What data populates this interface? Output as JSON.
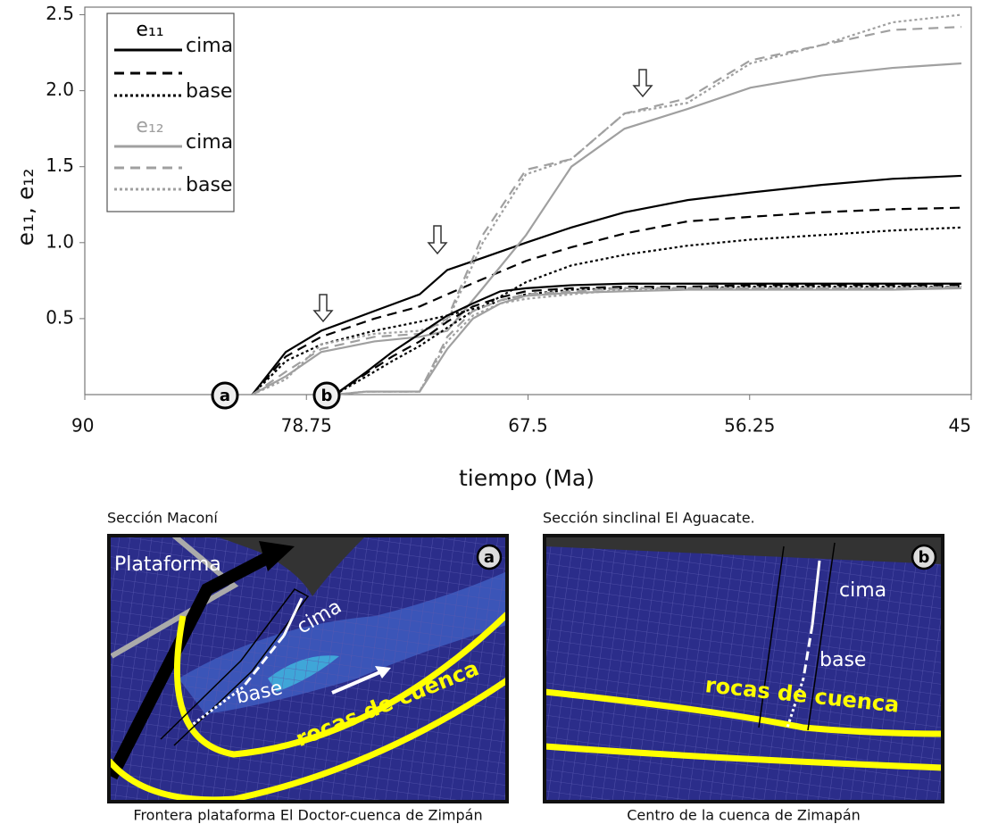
{
  "chart_data": {
    "type": "line",
    "x_label": "tiempo (Ma)",
    "y_label": "e₁₁, e₁₂",
    "xlim": [
      90,
      45
    ],
    "xticks": [
      90,
      78.75,
      67.5,
      56.25,
      45
    ],
    "ylim": [
      0,
      2.55
    ],
    "yticks": [
      0.5,
      {
        "value": 1.0,
        "label": "1.0"
      },
      1.5,
      {
        "value": 2.0,
        "label": "2.0"
      },
      2.5
    ],
    "annotations": [
      "a",
      "b"
    ],
    "legend": [
      {
        "title": "e₁₁",
        "entries": [
          {
            "label": "cima",
            "color": "#000000",
            "dash": "solid"
          },
          {
            "color": "#000000",
            "dash": "dashed"
          },
          {
            "label": "base",
            "color": "#000000",
            "dash": "dotted"
          }
        ]
      },
      {
        "title": "e₁₂",
        "entries": [
          {
            "label": "cima",
            "color": "#a0a0a0",
            "dash": "solid"
          },
          {
            "color": "#a0a0a0",
            "dash": "dashed"
          },
          {
            "label": "base",
            "color": "#a0a0a0",
            "dash": "dotted"
          }
        ]
      }
    ],
    "series": [
      {
        "color": "#000000",
        "dash": "solid",
        "x": [
          81.5,
          79.8,
          78.0,
          75.3,
          73.0,
          71.6,
          69.8,
          67.6,
          65.3,
          62.6,
          59.4,
          56.2,
          52.6,
          49.0,
          45.5
        ],
        "values": [
          0,
          0.28,
          0.42,
          0.55,
          0.66,
          0.82,
          0.9,
          1.0,
          1.1,
          1.2,
          1.28,
          1.33,
          1.38,
          1.42,
          1.44
        ]
      },
      {
        "color": "#000000",
        "dash": "dashed",
        "x": [
          81.5,
          79.8,
          78.0,
          75.3,
          73.0,
          71.6,
          69.8,
          67.6,
          65.3,
          62.6,
          59.4,
          56.2,
          52.6,
          49.0,
          45.5
        ],
        "values": [
          0,
          0.25,
          0.38,
          0.5,
          0.58,
          0.66,
          0.76,
          0.88,
          0.97,
          1.06,
          1.14,
          1.17,
          1.2,
          1.22,
          1.23
        ]
      },
      {
        "color": "#000000",
        "dash": "dotted",
        "x": [
          81.5,
          79.8,
          78.0,
          75.3,
          73.0,
          71.6,
          69.8,
          67.6,
          65.3,
          62.6,
          59.4,
          56.2,
          52.6,
          49.0,
          45.5
        ],
        "values": [
          0,
          0.22,
          0.33,
          0.42,
          0.48,
          0.52,
          0.58,
          0.74,
          0.85,
          0.92,
          0.98,
          1.02,
          1.05,
          1.08,
          1.1
        ]
      },
      {
        "color": "#a0a0a0",
        "dash": "solid",
        "x": [
          81.5,
          79.8,
          78.0,
          75.3,
          73.0,
          71.6,
          69.8,
          67.6,
          65.3,
          62.6,
          59.4,
          56.2,
          52.6,
          49.0,
          45.5
        ],
        "values": [
          0,
          0.12,
          0.28,
          0.35,
          0.38,
          0.42,
          0.7,
          1.05,
          1.5,
          1.75,
          1.88,
          2.02,
          2.1,
          2.15,
          2.18
        ]
      },
      {
        "color": "#a0a0a0",
        "dash": "dashed",
        "x": [
          81.5,
          79.8,
          78.0,
          75.3,
          73.0,
          71.6,
          69.8,
          67.6,
          65.3,
          62.6,
          59.4,
          56.2,
          52.6,
          49.0,
          45.5
        ],
        "values": [
          0,
          0.15,
          0.3,
          0.38,
          0.4,
          0.5,
          1.05,
          1.48,
          1.55,
          1.85,
          1.95,
          2.2,
          2.3,
          2.4,
          2.42
        ]
      },
      {
        "color": "#a0a0a0",
        "dash": "dotted",
        "x": [
          81.5,
          79.8,
          78.0,
          75.3,
          73.0,
          71.6,
          69.8,
          67.6,
          65.3,
          62.6,
          59.4,
          56.2,
          52.6,
          49.0,
          45.5
        ],
        "values": [
          0,
          0.1,
          0.33,
          0.4,
          0.42,
          0.48,
          1.0,
          1.45,
          1.55,
          1.85,
          1.92,
          2.18,
          2.3,
          2.45,
          2.5
        ]
      },
      {
        "color": "#000000",
        "dash": "solid",
        "x": [
          77.3,
          75.7,
          74.4,
          73.0,
          71.6,
          70.3,
          68.9,
          67.6,
          65.3,
          62.6,
          59.4,
          56.2,
          52.6,
          49.0,
          45.5
        ],
        "values": [
          0,
          0.15,
          0.28,
          0.4,
          0.52,
          0.6,
          0.68,
          0.7,
          0.72,
          0.73,
          0.73,
          0.73,
          0.73,
          0.73,
          0.73
        ]
      },
      {
        "color": "#000000",
        "dash": "dashed",
        "x": [
          77.3,
          75.7,
          74.4,
          73.0,
          71.6,
          70.3,
          68.9,
          67.6,
          65.3,
          62.6,
          59.4,
          56.2,
          52.6,
          49.0,
          45.5
        ],
        "values": [
          0,
          0.14,
          0.25,
          0.35,
          0.48,
          0.58,
          0.64,
          0.68,
          0.7,
          0.71,
          0.71,
          0.72,
          0.72,
          0.72,
          0.72
        ]
      },
      {
        "color": "#000000",
        "dash": "dotted",
        "x": [
          77.3,
          75.7,
          74.4,
          73.0,
          71.6,
          70.3,
          68.9,
          67.6,
          65.3,
          62.6,
          59.4,
          56.2,
          52.6,
          49.0,
          45.5
        ],
        "values": [
          0,
          0.12,
          0.22,
          0.32,
          0.44,
          0.55,
          0.62,
          0.66,
          0.69,
          0.7,
          0.7,
          0.71,
          0.71,
          0.71,
          0.71
        ]
      },
      {
        "color": "#a0a0a0",
        "dash": "solid",
        "x": [
          77.3,
          75.7,
          74.4,
          73.0,
          71.6,
          70.3,
          68.9,
          67.6,
          65.3,
          62.6,
          59.4,
          56.2,
          52.6,
          49.0,
          45.5
        ],
        "values": [
          0,
          0.02,
          0.02,
          0.02,
          0.3,
          0.5,
          0.6,
          0.65,
          0.67,
          0.68,
          0.69,
          0.69,
          0.69,
          0.69,
          0.7
        ]
      },
      {
        "color": "#a0a0a0",
        "dash": "dashed",
        "x": [
          77.3,
          75.7,
          74.4,
          73.0,
          71.6,
          70.3,
          68.9,
          67.6,
          65.3,
          62.6,
          59.4,
          56.2,
          52.6,
          49.0,
          45.5
        ],
        "values": [
          0,
          0.02,
          0.02,
          0.02,
          0.38,
          0.55,
          0.62,
          0.66,
          0.68,
          0.7,
          0.7,
          0.7,
          0.7,
          0.7,
          0.71
        ]
      },
      {
        "color": "#a0a0a0",
        "dash": "dotted",
        "x": [
          77.3,
          75.7,
          74.4,
          73.0,
          71.6,
          70.3,
          68.9,
          67.6,
          65.3,
          62.6,
          59.4,
          56.2,
          52.6,
          49.0,
          45.5
        ],
        "values": [
          0,
          0.02,
          0.02,
          0.02,
          0.35,
          0.52,
          0.6,
          0.63,
          0.66,
          0.69,
          0.7,
          0.7,
          0.7,
          0.7,
          0.71
        ]
      }
    ]
  },
  "diagrams": [
    {
      "title": "Sección Maconí",
      "letter": "a",
      "platform": "Plataforma",
      "top": "cima",
      "bottom": "base",
      "rocks": "rocas de cuenca",
      "caption": "Frontera plataforma El Doctor-cuenca de Zimpán"
    },
    {
      "title": "Sección sinclinal El Aguacate.",
      "letter": "b",
      "top": "cima",
      "bottom": "base",
      "rocks": "rocas de cuenca",
      "caption": "Centro de la cuenca de Zimapán"
    }
  ]
}
